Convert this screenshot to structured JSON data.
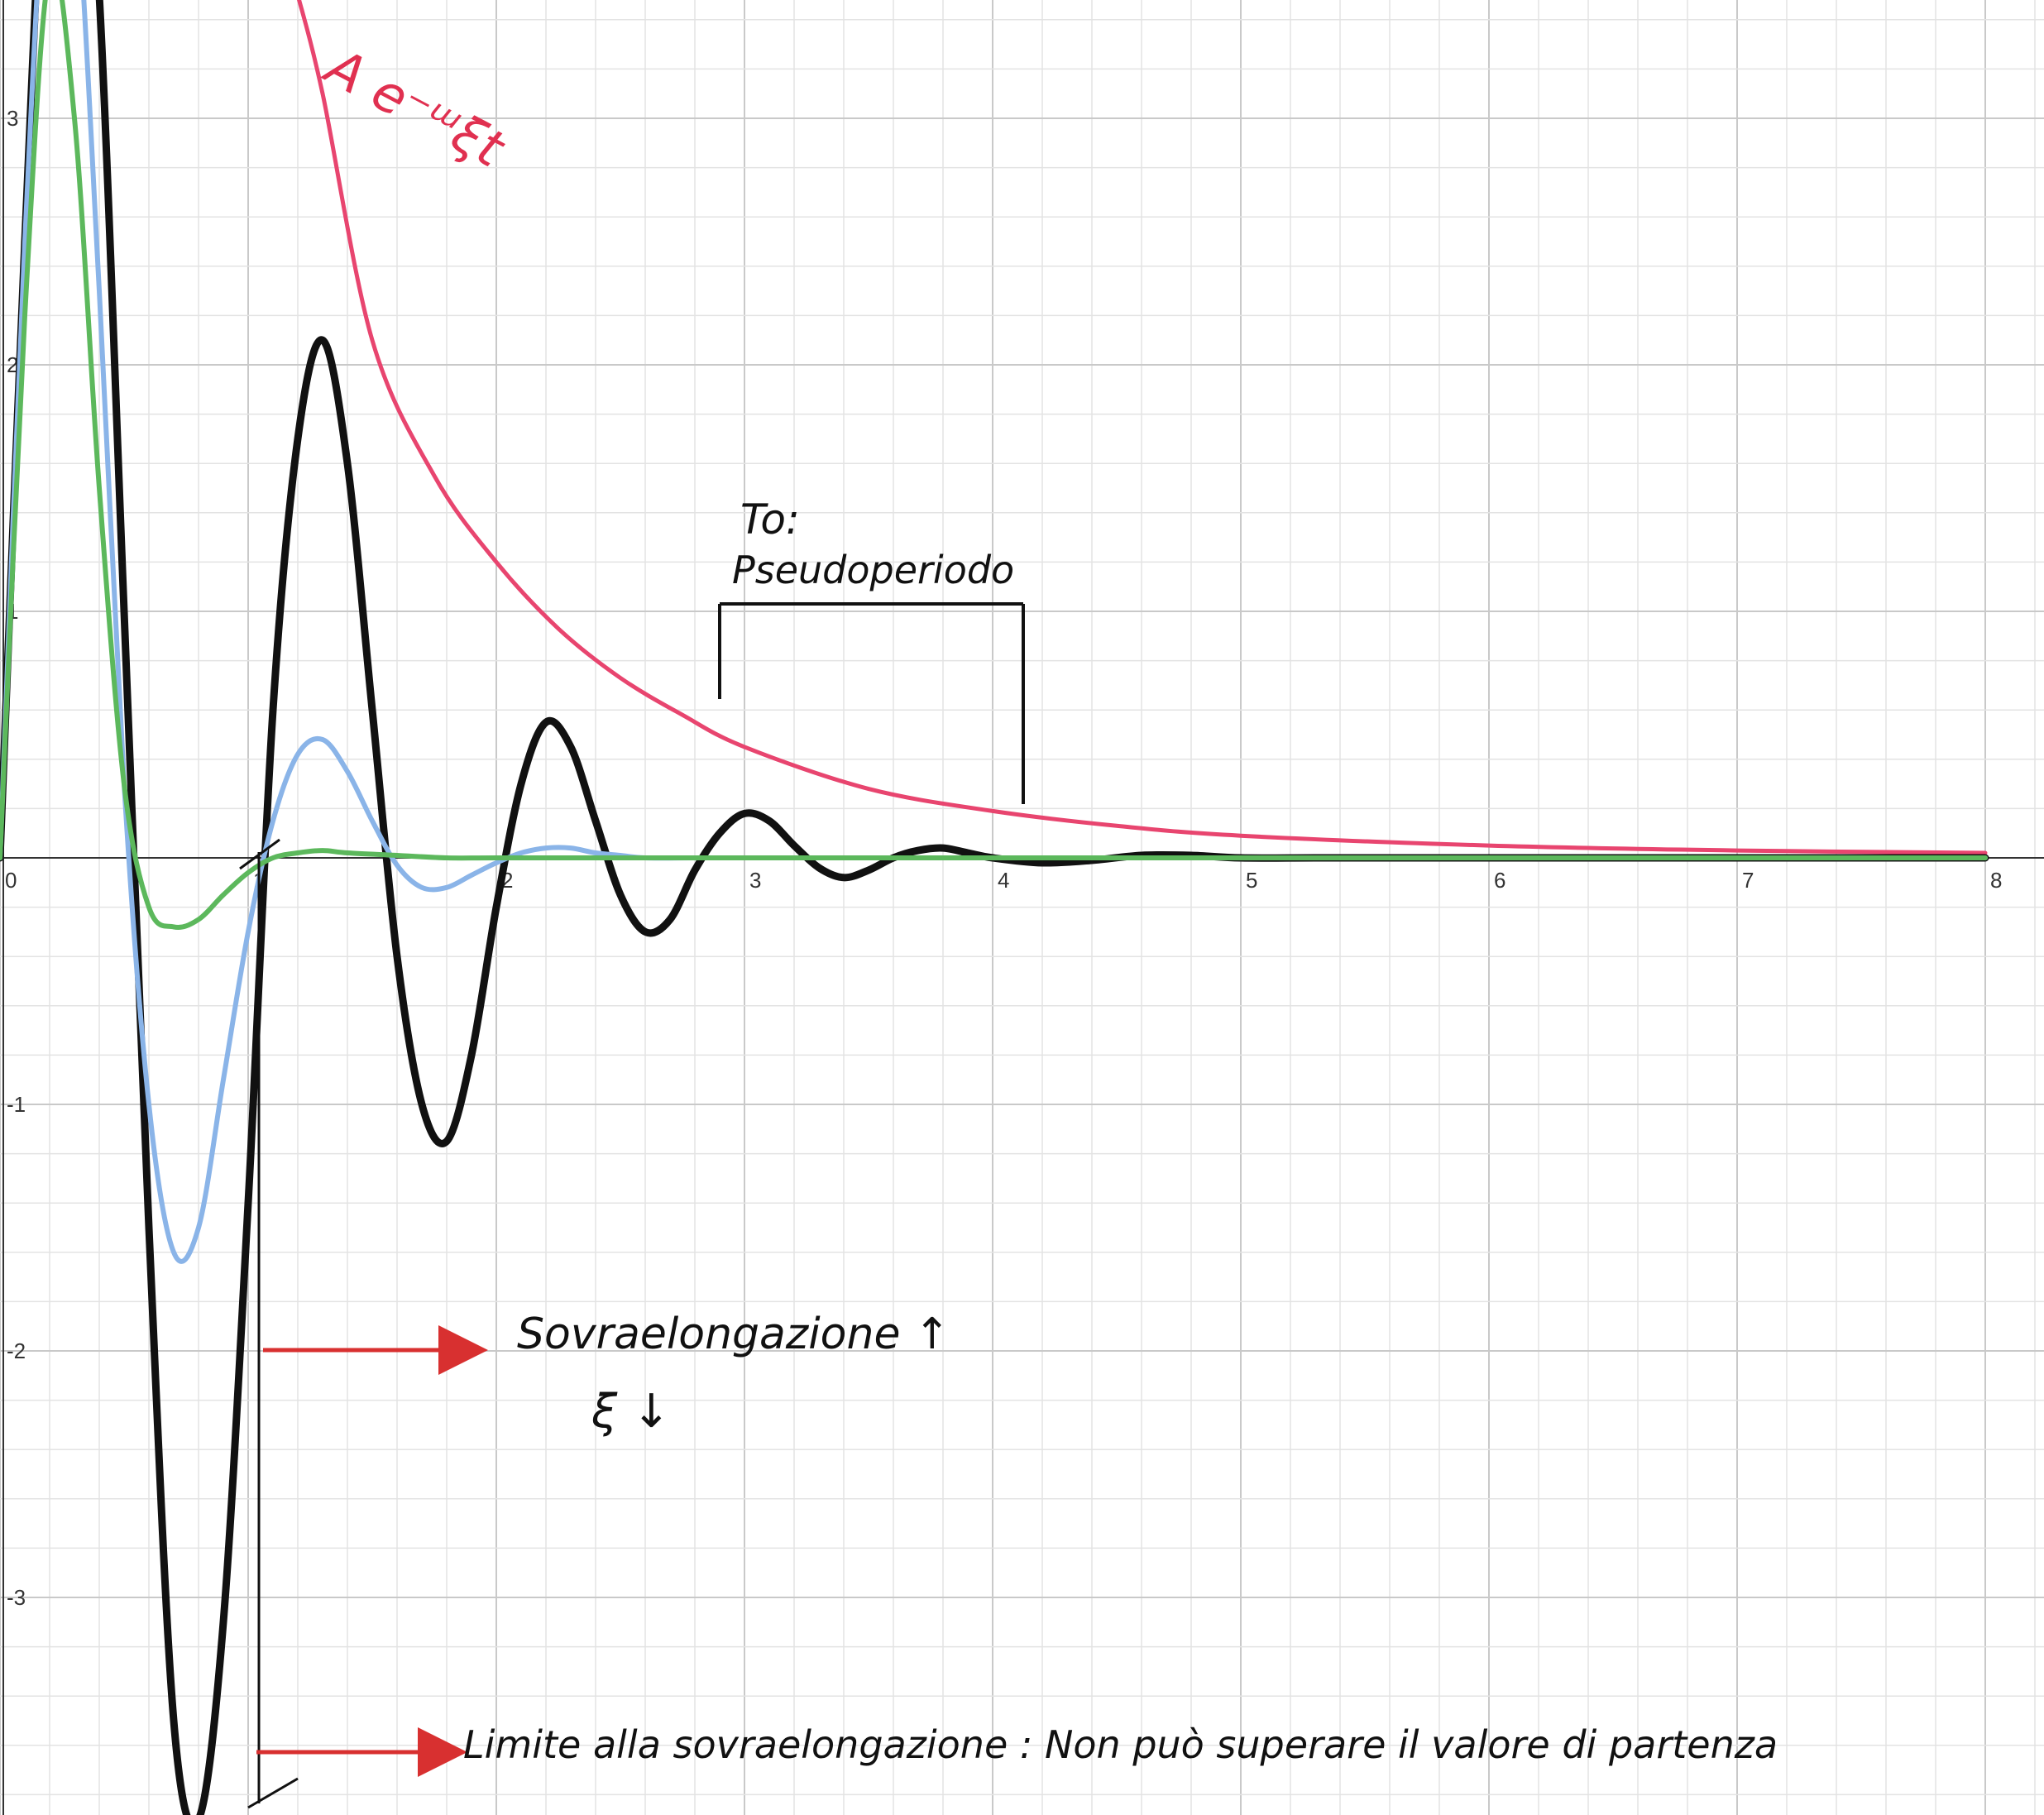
{
  "chart_data": {
    "type": "line",
    "title": "",
    "xlabel": "",
    "ylabel": "",
    "xlim": [
      0,
      8.1
    ],
    "ylim": [
      -3.9,
      3.5
    ],
    "x_ticks": [
      "0",
      "1",
      "2",
      "3",
      "4",
      "5",
      "6",
      "7",
      "8"
    ],
    "y_ticks": [
      "3",
      "2",
      "1",
      "-1",
      "-2",
      "-3"
    ],
    "grid": true,
    "series": [
      {
        "color": "#e8456f",
        "x": [
          1.2,
          1.3,
          1.5,
          1.75,
          2.0,
          2.25,
          2.5,
          2.75,
          3.0,
          3.5,
          4.0,
          4.5,
          5.0,
          6.0,
          7.0,
          8.0
        ],
        "y": [
          3.5,
          3.1,
          2.1,
          1.55,
          1.2,
          0.93,
          0.73,
          0.58,
          0.45,
          0.28,
          0.19,
          0.13,
          0.09,
          0.05,
          0.03,
          0.02
        ]
      },
      {
        "color": "#111111",
        "x": [
          0.0,
          0.1,
          0.2,
          0.3,
          0.4,
          0.5,
          0.6,
          0.7,
          0.8,
          0.9,
          1.0,
          1.1,
          1.2,
          1.3,
          1.4,
          1.5,
          1.6,
          1.7,
          1.8,
          1.9,
          2.0,
          2.1,
          2.2,
          2.3,
          2.4,
          2.5,
          2.6,
          2.7,
          2.8,
          2.9,
          3.0,
          3.1,
          3.2,
          3.3,
          3.4,
          3.5,
          3.6,
          3.7,
          3.8,
          3.9,
          4.0,
          4.2,
          4.4,
          4.6,
          4.8,
          5.0,
          5.3,
          5.6,
          6.0,
          6.5,
          7.0,
          8.0
        ],
        "y": [
          0.0,
          2.5,
          4.5,
          4.8,
          3.5,
          1.0,
          -1.5,
          -3.5,
          -3.9,
          -3.1,
          -1.4,
          0.6,
          1.7,
          2.1,
          1.6,
          0.6,
          -0.4,
          -1.0,
          -1.15,
          -0.8,
          -0.2,
          0.3,
          0.55,
          0.45,
          0.15,
          -0.15,
          -0.3,
          -0.25,
          -0.05,
          0.1,
          0.18,
          0.15,
          0.05,
          -0.04,
          -0.08,
          -0.05,
          0.0,
          0.03,
          0.04,
          0.02,
          0.0,
          -0.02,
          -0.01,
          0.01,
          0.01,
          0.0,
          0.0,
          0.0,
          0.0,
          0.0,
          0.0,
          0.0
        ]
      },
      {
        "color": "#8ab4e8",
        "x": [
          0.0,
          0.1,
          0.2,
          0.3,
          0.4,
          0.5,
          0.6,
          0.7,
          0.8,
          0.9,
          1.0,
          1.1,
          1.2,
          1.3,
          1.4,
          1.5,
          1.6,
          1.7,
          1.8,
          1.9,
          2.0,
          2.1,
          2.2,
          2.3,
          2.4,
          2.5,
          2.6,
          2.8,
          3.0,
          3.5,
          4.0,
          5.0,
          6.0,
          8.0
        ],
        "y": [
          0.0,
          2.5,
          4.2,
          4.0,
          2.3,
          0.3,
          -1.0,
          -1.6,
          -1.5,
          -0.9,
          -0.3,
          0.15,
          0.42,
          0.48,
          0.35,
          0.15,
          -0.03,
          -0.12,
          -0.12,
          -0.07,
          -0.02,
          0.02,
          0.04,
          0.04,
          0.02,
          0.01,
          0.0,
          0.0,
          0.0,
          0.0,
          0.0,
          0.0,
          0.0,
          0.0
        ]
      },
      {
        "color": "#5cb85c",
        "x": [
          0.0,
          0.1,
          0.2,
          0.3,
          0.4,
          0.5,
          0.6,
          0.7,
          0.8,
          0.9,
          1.0,
          1.1,
          1.2,
          1.3,
          1.4,
          1.6,
          1.8,
          2.0,
          2.5,
          3.0,
          4.0,
          6.0,
          8.0
        ],
        "y": [
          0.0,
          2.2,
          3.6,
          3.0,
          1.5,
          0.3,
          -0.2,
          -0.28,
          -0.25,
          -0.15,
          -0.06,
          0.0,
          0.02,
          0.03,
          0.02,
          0.01,
          0.0,
          0.0,
          0.0,
          0.0,
          0.0,
          0.0,
          0.0
        ]
      }
    ],
    "annotations": {
      "curve_label": "A e⁻ᵚξt",
      "period_label_line1": "To:",
      "period_label_line2": "Pseudoperiodo",
      "overshoot_label": "Sovraelongazione ↑",
      "overshoot_sub": "ξ ↓",
      "limit_label": "Limite alla sovraelongazione : Non può superare il valore di partenza"
    }
  }
}
